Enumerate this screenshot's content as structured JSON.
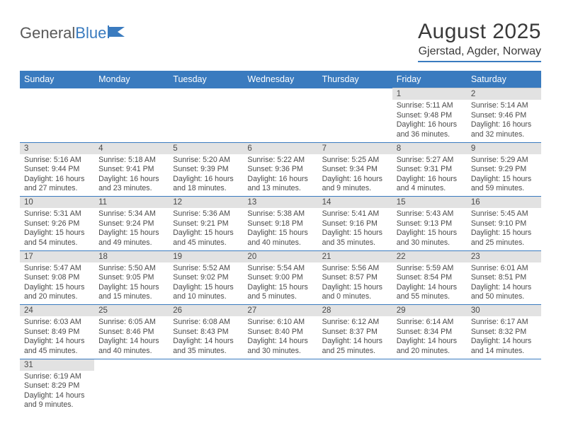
{
  "logo": {
    "part1": "General",
    "part2": "Blue"
  },
  "title": "August 2025",
  "location": "Gjerstad, Agder, Norway",
  "colors": {
    "headerBlue": "#3a7bbf",
    "dayNumBg": "#e2e2e2",
    "textGray": "#4a4a4a",
    "white": "#ffffff"
  },
  "dayNames": [
    "Sunday",
    "Monday",
    "Tuesday",
    "Wednesday",
    "Thursday",
    "Friday",
    "Saturday"
  ],
  "weeks": [
    [
      null,
      null,
      null,
      null,
      null,
      {
        "n": "1",
        "sr": "5:11 AM",
        "ss": "9:48 PM",
        "dl": "16 hours and 36 minutes."
      },
      {
        "n": "2",
        "sr": "5:14 AM",
        "ss": "9:46 PM",
        "dl": "16 hours and 32 minutes."
      }
    ],
    [
      {
        "n": "3",
        "sr": "5:16 AM",
        "ss": "9:44 PM",
        "dl": "16 hours and 27 minutes."
      },
      {
        "n": "4",
        "sr": "5:18 AM",
        "ss": "9:41 PM",
        "dl": "16 hours and 23 minutes."
      },
      {
        "n": "5",
        "sr": "5:20 AM",
        "ss": "9:39 PM",
        "dl": "16 hours and 18 minutes."
      },
      {
        "n": "6",
        "sr": "5:22 AM",
        "ss": "9:36 PM",
        "dl": "16 hours and 13 minutes."
      },
      {
        "n": "7",
        "sr": "5:25 AM",
        "ss": "9:34 PM",
        "dl": "16 hours and 9 minutes."
      },
      {
        "n": "8",
        "sr": "5:27 AM",
        "ss": "9:31 PM",
        "dl": "16 hours and 4 minutes."
      },
      {
        "n": "9",
        "sr": "5:29 AM",
        "ss": "9:29 PM",
        "dl": "15 hours and 59 minutes."
      }
    ],
    [
      {
        "n": "10",
        "sr": "5:31 AM",
        "ss": "9:26 PM",
        "dl": "15 hours and 54 minutes."
      },
      {
        "n": "11",
        "sr": "5:34 AM",
        "ss": "9:24 PM",
        "dl": "15 hours and 49 minutes."
      },
      {
        "n": "12",
        "sr": "5:36 AM",
        "ss": "9:21 PM",
        "dl": "15 hours and 45 minutes."
      },
      {
        "n": "13",
        "sr": "5:38 AM",
        "ss": "9:18 PM",
        "dl": "15 hours and 40 minutes."
      },
      {
        "n": "14",
        "sr": "5:41 AM",
        "ss": "9:16 PM",
        "dl": "15 hours and 35 minutes."
      },
      {
        "n": "15",
        "sr": "5:43 AM",
        "ss": "9:13 PM",
        "dl": "15 hours and 30 minutes."
      },
      {
        "n": "16",
        "sr": "5:45 AM",
        "ss": "9:10 PM",
        "dl": "15 hours and 25 minutes."
      }
    ],
    [
      {
        "n": "17",
        "sr": "5:47 AM",
        "ss": "9:08 PM",
        "dl": "15 hours and 20 minutes."
      },
      {
        "n": "18",
        "sr": "5:50 AM",
        "ss": "9:05 PM",
        "dl": "15 hours and 15 minutes."
      },
      {
        "n": "19",
        "sr": "5:52 AM",
        "ss": "9:02 PM",
        "dl": "15 hours and 10 minutes."
      },
      {
        "n": "20",
        "sr": "5:54 AM",
        "ss": "9:00 PM",
        "dl": "15 hours and 5 minutes."
      },
      {
        "n": "21",
        "sr": "5:56 AM",
        "ss": "8:57 PM",
        "dl": "15 hours and 0 minutes."
      },
      {
        "n": "22",
        "sr": "5:59 AM",
        "ss": "8:54 PM",
        "dl": "14 hours and 55 minutes."
      },
      {
        "n": "23",
        "sr": "6:01 AM",
        "ss": "8:51 PM",
        "dl": "14 hours and 50 minutes."
      }
    ],
    [
      {
        "n": "24",
        "sr": "6:03 AM",
        "ss": "8:49 PM",
        "dl": "14 hours and 45 minutes."
      },
      {
        "n": "25",
        "sr": "6:05 AM",
        "ss": "8:46 PM",
        "dl": "14 hours and 40 minutes."
      },
      {
        "n": "26",
        "sr": "6:08 AM",
        "ss": "8:43 PM",
        "dl": "14 hours and 35 minutes."
      },
      {
        "n": "27",
        "sr": "6:10 AM",
        "ss": "8:40 PM",
        "dl": "14 hours and 30 minutes."
      },
      {
        "n": "28",
        "sr": "6:12 AM",
        "ss": "8:37 PM",
        "dl": "14 hours and 25 minutes."
      },
      {
        "n": "29",
        "sr": "6:14 AM",
        "ss": "8:34 PM",
        "dl": "14 hours and 20 minutes."
      },
      {
        "n": "30",
        "sr": "6:17 AM",
        "ss": "8:32 PM",
        "dl": "14 hours and 14 minutes."
      }
    ],
    [
      {
        "n": "31",
        "sr": "6:19 AM",
        "ss": "8:29 PM",
        "dl": "14 hours and 9 minutes."
      },
      null,
      null,
      null,
      null,
      null,
      null
    ]
  ],
  "labels": {
    "sunrise": "Sunrise:",
    "sunset": "Sunset:",
    "daylight": "Daylight:"
  }
}
